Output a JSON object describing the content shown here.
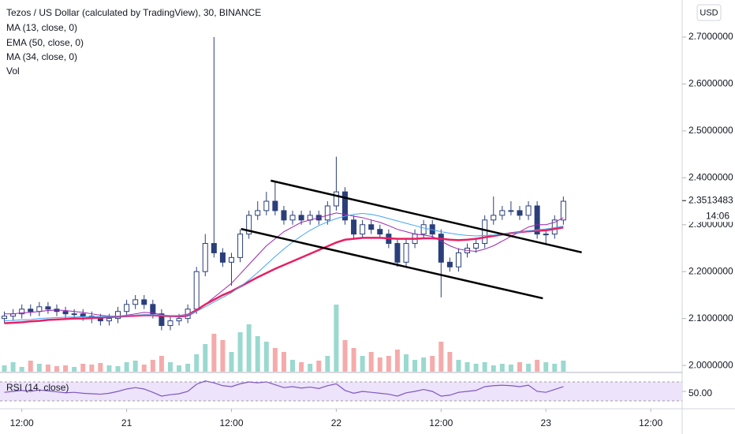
{
  "chart_data": {
    "type": "candlestick",
    "title": "Tezos / US Dollar (calculated by TradingView), 30, BINANCE",
    "currency": "USD",
    "volume_label": "Vol",
    "x": [
      -14,
      -13,
      -12,
      -11,
      -10,
      -9,
      -8,
      -7,
      -6,
      -5,
      -4,
      -3,
      -2,
      -1,
      0,
      1,
      2,
      3,
      4,
      5,
      6,
      7,
      8,
      9,
      10,
      11,
      12,
      13,
      14,
      15,
      16,
      17,
      18,
      19,
      20,
      21,
      22,
      23,
      24,
      25,
      26,
      27,
      28,
      29,
      30,
      31,
      32,
      33,
      34,
      35,
      36,
      37,
      38,
      39,
      40,
      41,
      42,
      43,
      44,
      45,
      46,
      47,
      48,
      49,
      50
    ],
    "open": [
      2.1,
      2.105,
      2.11,
      2.12,
      2.115,
      2.125,
      2.12,
      2.115,
      2.11,
      2.11,
      2.105,
      2.1,
      2.095,
      2.1,
      2.115,
      2.13,
      2.14,
      2.13,
      2.11,
      2.085,
      2.095,
      2.1,
      2.12,
      2.2,
      2.26,
      2.24,
      2.22,
      2.23,
      2.28,
      2.32,
      2.33,
      2.35,
      2.33,
      2.31,
      2.32,
      2.31,
      2.32,
      2.31,
      2.34,
      2.37,
      2.31,
      2.28,
      2.3,
      2.29,
      2.28,
      2.26,
      2.22,
      2.26,
      2.28,
      2.3,
      2.28,
      2.22,
      2.21,
      2.24,
      2.25,
      2.26,
      2.31,
      2.32,
      2.33,
      2.33,
      2.32,
      2.34,
      2.28,
      2.28,
      2.31
    ],
    "high": [
      2.115,
      2.12,
      2.13,
      2.13,
      2.135,
      2.135,
      2.13,
      2.125,
      2.12,
      2.12,
      2.115,
      2.11,
      2.11,
      2.125,
      2.14,
      2.15,
      2.15,
      2.14,
      2.12,
      2.105,
      2.11,
      2.13,
      2.21,
      2.28,
      2.7,
      2.25,
      2.24,
      2.29,
      2.33,
      2.35,
      2.37,
      2.39,
      2.34,
      2.33,
      2.33,
      2.33,
      2.33,
      2.35,
      2.445,
      2.38,
      2.32,
      2.31,
      2.31,
      2.3,
      2.29,
      2.27,
      2.27,
      2.29,
      2.31,
      2.31,
      2.29,
      2.23,
      2.25,
      2.26,
      2.27,
      2.32,
      2.36,
      2.34,
      2.35,
      2.34,
      2.35,
      2.35,
      2.29,
      2.32,
      2.36
    ],
    "low": [
      2.09,
      2.095,
      2.1,
      2.105,
      2.105,
      2.11,
      2.105,
      2.1,
      2.1,
      2.095,
      2.09,
      2.085,
      2.085,
      2.09,
      2.105,
      2.12,
      2.12,
      2.1,
      2.075,
      2.075,
      2.085,
      2.09,
      2.11,
      2.19,
      2.23,
      2.21,
      2.17,
      2.22,
      2.27,
      2.31,
      2.32,
      2.32,
      2.3,
      2.3,
      2.3,
      2.3,
      2.3,
      2.3,
      2.33,
      2.3,
      2.27,
      2.27,
      2.28,
      2.27,
      2.25,
      2.21,
      2.21,
      2.25,
      2.27,
      2.27,
      2.145,
      2.2,
      2.2,
      2.23,
      2.24,
      2.25,
      2.3,
      2.31,
      2.32,
      2.31,
      2.31,
      2.27,
      2.26,
      2.27,
      2.3
    ],
    "close": [
      2.105,
      2.11,
      2.12,
      2.115,
      2.125,
      2.12,
      2.115,
      2.11,
      2.11,
      2.105,
      2.1,
      2.095,
      2.1,
      2.115,
      2.13,
      2.14,
      2.13,
      2.11,
      2.085,
      2.095,
      2.1,
      2.12,
      2.2,
      2.26,
      2.24,
      2.22,
      2.23,
      2.28,
      2.32,
      2.33,
      2.35,
      2.33,
      2.31,
      2.32,
      2.31,
      2.32,
      2.31,
      2.34,
      2.37,
      2.31,
      2.28,
      2.3,
      2.29,
      2.28,
      2.26,
      2.22,
      2.26,
      2.28,
      2.3,
      2.28,
      2.22,
      2.21,
      2.24,
      2.25,
      2.26,
      2.31,
      2.32,
      2.33,
      2.33,
      2.32,
      2.34,
      2.28,
      2.28,
      2.31,
      2.35
    ],
    "volume": [
      8,
      12,
      6,
      14,
      10,
      9,
      7,
      8,
      6,
      10,
      9,
      11,
      8,
      7,
      12,
      14,
      9,
      15,
      20,
      12,
      8,
      10,
      22,
      35,
      48,
      40,
      25,
      50,
      60,
      45,
      38,
      30,
      25,
      15,
      12,
      10,
      14,
      20,
      85,
      40,
      30,
      20,
      25,
      18,
      20,
      28,
      22,
      15,
      18,
      20,
      38,
      25,
      15,
      12,
      10,
      12,
      8,
      10,
      9,
      12,
      10,
      15,
      12,
      10,
      14
    ],
    "up_color": "#ffffff",
    "down_color": "#2a3f7a",
    "candle_stroke": "#2a3f7a",
    "volume_up_color": "#9ad9cf",
    "volume_down_color": "#f5abab",
    "series": [
      {
        "name": "MA (13, close, 0)",
        "color": "#9c27b0",
        "width": 1,
        "values": [
          2.11,
          2.11,
          2.112,
          2.113,
          2.115,
          2.117,
          2.118,
          2.117,
          2.115,
          2.113,
          2.11,
          2.107,
          2.105,
          2.105,
          2.107,
          2.11,
          2.113,
          2.112,
          2.108,
          2.105,
          2.103,
          2.105,
          2.115,
          2.13,
          2.145,
          2.16,
          2.175,
          2.195,
          2.215,
          2.235,
          2.255,
          2.27,
          2.285,
          2.295,
          2.305,
          2.31,
          2.315,
          2.32,
          2.325,
          2.322,
          2.318,
          2.315,
          2.31,
          2.305,
          2.298,
          2.29,
          2.285,
          2.28,
          2.278,
          2.275,
          2.265,
          2.255,
          2.248,
          2.245,
          2.243,
          2.248,
          2.255,
          2.265,
          2.275,
          2.285,
          2.295,
          2.3,
          2.3,
          2.305,
          2.315
        ]
      },
      {
        "name": "EMA (50, close, 0)",
        "color": "#e91e63",
        "width": 2.5,
        "values": [
          2.09,
          2.091,
          2.092,
          2.094,
          2.095,
          2.097,
          2.098,
          2.099,
          2.1,
          2.1,
          2.101,
          2.102,
          2.103,
          2.104,
          2.105,
          2.106,
          2.107,
          2.107,
          2.106,
          2.105,
          2.105,
          2.108,
          2.118,
          2.13,
          2.14,
          2.15,
          2.158,
          2.168,
          2.178,
          2.188,
          2.197,
          2.206,
          2.214,
          2.222,
          2.23,
          2.238,
          2.246,
          2.254,
          2.262,
          2.268,
          2.27,
          2.272,
          2.272,
          2.272,
          2.271,
          2.27,
          2.27,
          2.27,
          2.271,
          2.271,
          2.27,
          2.268,
          2.267,
          2.268,
          2.27,
          2.273,
          2.276,
          2.279,
          2.282,
          2.284,
          2.286,
          2.287,
          2.288,
          2.291,
          2.294
        ]
      },
      {
        "name": "MA (34, close, 0)",
        "color": "#42a5f5",
        "width": 1,
        "values": [
          2.095,
          2.096,
          2.097,
          2.098,
          2.1,
          2.101,
          2.102,
          2.103,
          2.103,
          2.104,
          2.104,
          2.104,
          2.104,
          2.105,
          2.106,
          2.107,
          2.108,
          2.108,
          2.107,
          2.106,
          2.106,
          2.108,
          2.115,
          2.125,
          2.135,
          2.145,
          2.155,
          2.168,
          2.182,
          2.198,
          2.215,
          2.232,
          2.248,
          2.263,
          2.276,
          2.288,
          2.298,
          2.306,
          2.313,
          2.318,
          2.322,
          2.324,
          2.322,
          2.318,
          2.313,
          2.308,
          2.303,
          2.298,
          2.293,
          2.289,
          2.285,
          2.282,
          2.279,
          2.277,
          2.276,
          2.277,
          2.278,
          2.28,
          2.282,
          2.284,
          2.287,
          2.289,
          2.291,
          2.294,
          2.297
        ]
      }
    ],
    "trendlines": [
      {
        "x": [
          16.5,
          52.1
        ],
        "y": [
          2.394,
          2.241
        ]
      },
      {
        "x": [
          13.1,
          47.65
        ],
        "y": [
          2.291,
          2.143
        ]
      }
    ],
    "last_price": {
      "value": 2.3513483,
      "label": "2.3513483"
    },
    "countdown": "14:06",
    "xlim": [
      -14.5,
      63.6
    ],
    "xticks": [
      {
        "value": -12,
        "label": "12:00"
      },
      {
        "value": 0,
        "label": "21"
      },
      {
        "value": 12,
        "label": "12:00"
      },
      {
        "value": 24,
        "label": "22"
      },
      {
        "value": 36,
        "label": "12:00"
      },
      {
        "value": 48,
        "label": "23"
      },
      {
        "value": 60,
        "label": "12:00"
      }
    ],
    "ylim": [
      1.985,
      2.779
    ],
    "yticks": [
      {
        "value": 2.0,
        "label": "2.0000000"
      },
      {
        "value": 2.1,
        "label": "2.1000000"
      },
      {
        "value": 2.2,
        "label": "2.2000000"
      },
      {
        "value": 2.3,
        "label": "2.3000000"
      },
      {
        "value": 2.4,
        "label": "2.4000000"
      },
      {
        "value": 2.5,
        "label": "2.5000000"
      },
      {
        "value": 2.6,
        "label": "2.6000000"
      },
      {
        "value": 2.7,
        "label": "2.7000000"
      }
    ],
    "rsi": {
      "name": "RSI (14, close)",
      "color": "#7e57c2",
      "band": [
        30,
        70
      ],
      "band_color": "#ede3fa",
      "ylim": [
        13.3,
        83.3
      ],
      "yticks": [
        {
          "value": 50,
          "label": "50.00"
        }
      ],
      "values": [
        48,
        50,
        52,
        50,
        53,
        51,
        49,
        47,
        48,
        46,
        45,
        44,
        46,
        50,
        55,
        58,
        55,
        48,
        40,
        43,
        45,
        50,
        65,
        72,
        68,
        62,
        60,
        66,
        70,
        68,
        70,
        64,
        58,
        60,
        57,
        59,
        56,
        62,
        66,
        52,
        46,
        50,
        48,
        46,
        44,
        40,
        47,
        50,
        54,
        50,
        40,
        42,
        48,
        50,
        52,
        60,
        62,
        63,
        62,
        60,
        63,
        50,
        48,
        54,
        60
      ]
    }
  }
}
